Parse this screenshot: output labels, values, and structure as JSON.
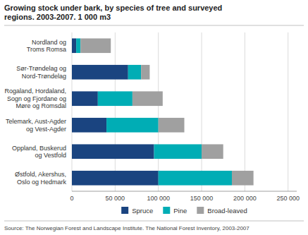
{
  "chart_data": {
    "type": "bar",
    "orientation": "horizontal",
    "stacked": true,
    "title": "Growing stock under bark, by species of tree and surveyed\nregions. 2003-2007. 1 000 m3",
    "annotations": [
      "Source: The Norwegian Forest and Landscape Institute. The National Forest Inventory, 2003-2007"
    ],
    "categories": [
      "Nordland og\nTroms Romsa",
      "Sør-Trøndelag og\nNord-Trøndelag",
      "Rogaland, Hordaland,\nSogn og Fjordane og\nMøre og Romsdal",
      "Telemark, Aust-Agder\nog Vest-Agder",
      "Oppland, Buskerud\nog Vestfold",
      "Østfold, Akershus,\nOslo og Hedmark"
    ],
    "series": [
      {
        "name": "Spruce",
        "color": "#1a4480",
        "values": [
          5000,
          65000,
          30000,
          40000,
          95000,
          100000
        ]
      },
      {
        "name": "Pine",
        "color": "#00adb5",
        "values": [
          5000,
          15000,
          40000,
          60000,
          55000,
          85000
        ]
      },
      {
        "name": "Broad-leaved",
        "color": "#a0a0a0",
        "values": [
          35000,
          10000,
          35000,
          30000,
          25000,
          25000
        ]
      }
    ],
    "xlim": [
      0,
      260000
    ],
    "xticks": [
      0,
      {
        "value": 50000,
        "label": "50 000"
      },
      {
        "value": 100000,
        "label": "100 000"
      },
      {
        "value": 150000,
        "label": "150 000"
      },
      {
        "value": 200000,
        "label": "200 000"
      },
      {
        "value": 250000,
        "label": "250 000"
      }
    ],
    "grid": true,
    "legend": "bottom"
  }
}
